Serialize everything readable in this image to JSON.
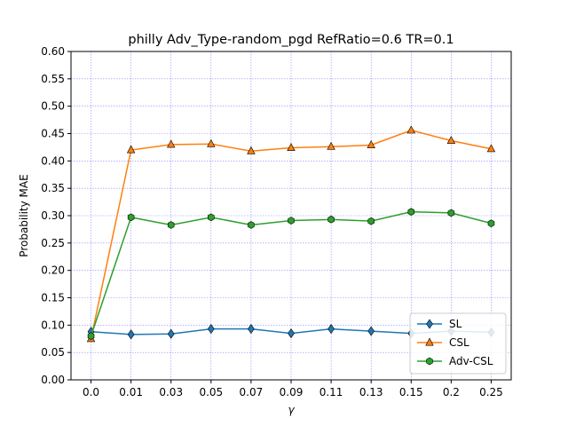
{
  "chart_data": {
    "type": "line",
    "title": "philly Adv_Type-random_pgd RefRatio=0.6 TR=0.1",
    "xlabel": "γ",
    "ylabel": "Probability MAE",
    "categories": [
      "0.0",
      "0.01",
      "0.03",
      "0.05",
      "0.07",
      "0.09",
      "0.11",
      "0.13",
      "0.15",
      "0.2",
      "0.25"
    ],
    "ylim": [
      0.0,
      0.6
    ],
    "yticks": [
      "0.00",
      "0.05",
      "0.10",
      "0.15",
      "0.20",
      "0.25",
      "0.30",
      "0.35",
      "0.40",
      "0.45",
      "0.50",
      "0.55",
      "0.60"
    ],
    "grid": true,
    "legend_position": "lower-right",
    "series": [
      {
        "name": "SL",
        "color": "#1f77b4",
        "marker": "diamond",
        "values": [
          0.088,
          0.083,
          0.084,
          0.093,
          0.093,
          0.085,
          0.093,
          0.089,
          0.085,
          0.089,
          0.087
        ]
      },
      {
        "name": "CSL",
        "color": "#ff7f0e",
        "marker": "triangle",
        "values": [
          0.075,
          0.42,
          0.43,
          0.431,
          0.418,
          0.424,
          0.426,
          0.429,
          0.456,
          0.437,
          0.422
        ]
      },
      {
        "name": "Adv-CSL",
        "color": "#2ca02c",
        "marker": "hexagon",
        "values": [
          0.08,
          0.297,
          0.283,
          0.297,
          0.283,
          0.291,
          0.293,
          0.29,
          0.307,
          0.305,
          0.286
        ]
      }
    ]
  }
}
